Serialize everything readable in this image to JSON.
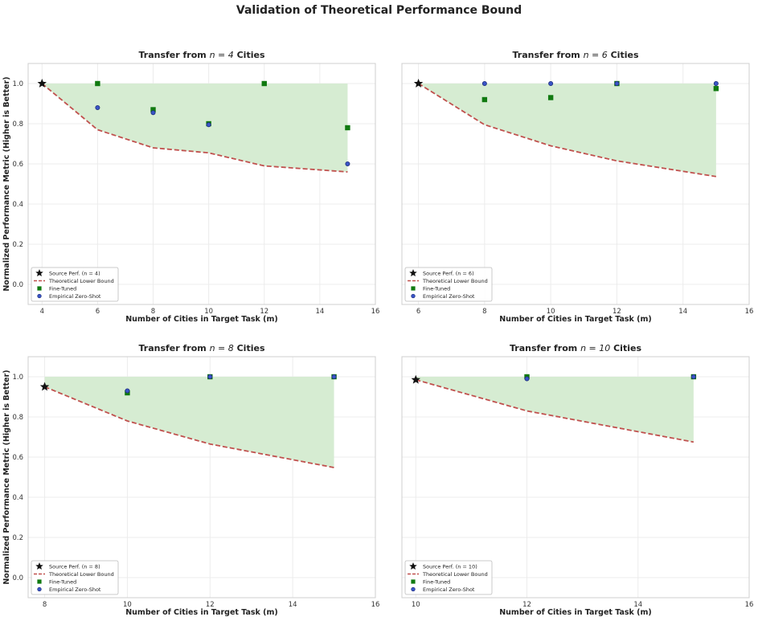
{
  "figure": {
    "title": "Validation of Theoretical Performance Bound"
  },
  "colors": {
    "fill_region": "#d6ecd2",
    "bound_line": "#c0504d",
    "fine_tuned": "#117a11",
    "zero_shot_face": "#3a55c8",
    "zero_shot_edge": "#1f2f7a",
    "star": "#111111",
    "grid": "#ececec",
    "frame": "#cfcfcf"
  },
  "legend": {
    "theoretical_label": "Theoretical Lower Bound",
    "fine_tuned_label": "Fine-Tuned",
    "zero_shot_label": "Empirical Zero-Shot"
  },
  "chart_data": [
    {
      "type": "scatter",
      "title": "Transfer from n = 4 Cities",
      "title_pre": "Transfer from ",
      "title_math": "n = 4",
      "title_post": " Cities",
      "xlabel": "Number of Cities in Target Task (m)",
      "ylabel": "Normalized Performance Metric (Higher is Better)",
      "xlim": [
        3.5,
        16
      ],
      "ylim": [
        -0.1,
        1.1
      ],
      "xticks": [
        4,
        6,
        8,
        10,
        12,
        14,
        16
      ],
      "yticks": [
        0.0,
        0.2,
        0.4,
        0.6,
        0.8,
        1.0
      ],
      "grid": true,
      "legend_position": "lower-left",
      "source_label": "Source Perf. (n = 4)",
      "source": {
        "x": 4,
        "y": 1.0
      },
      "theoretical_lower_bound": {
        "x": [
          4,
          6,
          8,
          10,
          12,
          15
        ],
        "y": [
          1.0,
          0.77,
          0.68,
          0.655,
          0.59,
          0.56
        ]
      },
      "fine_tuned": {
        "x": [
          6,
          8,
          10,
          12,
          15
        ],
        "y": [
          1.0,
          0.87,
          0.8,
          1.0,
          0.78
        ]
      },
      "empirical_zero_shot": {
        "x": [
          6,
          8,
          10,
          15
        ],
        "y": [
          0.88,
          0.855,
          0.795,
          0.6
        ]
      }
    },
    {
      "type": "scatter",
      "title": "Transfer from n = 6 Cities",
      "title_pre": "Transfer from ",
      "title_math": "n = 6",
      "title_post": " Cities",
      "xlabel": "Number of Cities in Target Task (m)",
      "ylabel": "",
      "xlim": [
        5.5,
        16
      ],
      "ylim": [
        -0.1,
        1.1
      ],
      "xticks": [
        6,
        8,
        10,
        12,
        14,
        16
      ],
      "yticks": [],
      "grid": true,
      "legend_position": "lower-left",
      "source_label": "Source Perf. (n = 6)",
      "source": {
        "x": 6,
        "y": 1.0
      },
      "theoretical_lower_bound": {
        "x": [
          6,
          8,
          10,
          12,
          15
        ],
        "y": [
          1.0,
          0.795,
          0.69,
          0.615,
          0.537
        ]
      },
      "fine_tuned": {
        "x": [
          8,
          10,
          12,
          15
        ],
        "y": [
          0.92,
          0.93,
          1.0,
          0.975
        ]
      },
      "empirical_zero_shot": {
        "x": [
          8,
          10,
          12,
          15
        ],
        "y": [
          1.0,
          1.0,
          1.0,
          1.0
        ]
      }
    },
    {
      "type": "scatter",
      "title": "Transfer from n = 8 Cities",
      "title_pre": "Transfer from ",
      "title_math": "n = 8",
      "title_post": " Cities",
      "xlabel": "Number of Cities in Target Task (m)",
      "ylabel": "Normalized Performance Metric (Higher is Better)",
      "xlim": [
        7.6,
        16
      ],
      "ylim": [
        -0.1,
        1.1
      ],
      "xticks": [
        8,
        10,
        12,
        14,
        16
      ],
      "yticks": [
        0.0,
        0.2,
        0.4,
        0.6,
        0.8,
        1.0
      ],
      "grid": true,
      "legend_position": "lower-left",
      "source_label": "Source Perf. (n = 8)",
      "source": {
        "x": 8,
        "y": 0.95
      },
      "theoretical_lower_bound": {
        "x": [
          8,
          10,
          12,
          15
        ],
        "y": [
          0.95,
          0.78,
          0.665,
          0.548
        ]
      },
      "fine_tuned": {
        "x": [
          10,
          12,
          15
        ],
        "y": [
          0.92,
          1.0,
          1.0
        ]
      },
      "empirical_zero_shot": {
        "x": [
          10,
          12,
          15
        ],
        "y": [
          0.93,
          1.0,
          1.0
        ]
      }
    },
    {
      "type": "scatter",
      "title": "Transfer from n = 10 Cities",
      "title_pre": "Transfer from ",
      "title_math": "n = 10",
      "title_post": " Cities",
      "xlabel": "Number of Cities in Target Task (m)",
      "ylabel": "",
      "xlim": [
        9.75,
        16
      ],
      "ylim": [
        -0.1,
        1.1
      ],
      "xticks": [
        10,
        12,
        14,
        16
      ],
      "yticks": [],
      "grid": true,
      "legend_position": "lower-left",
      "source_label": "Source Perf. (n = 10)",
      "source": {
        "x": 10,
        "y": 0.985
      },
      "theoretical_lower_bound": {
        "x": [
          10,
          12,
          15
        ],
        "y": [
          0.985,
          0.83,
          0.675
        ]
      },
      "fine_tuned": {
        "x": [
          12,
          15
        ],
        "y": [
          1.0,
          1.0
        ]
      },
      "empirical_zero_shot": {
        "x": [
          12,
          15
        ],
        "y": [
          0.99,
          1.0
        ]
      }
    }
  ]
}
